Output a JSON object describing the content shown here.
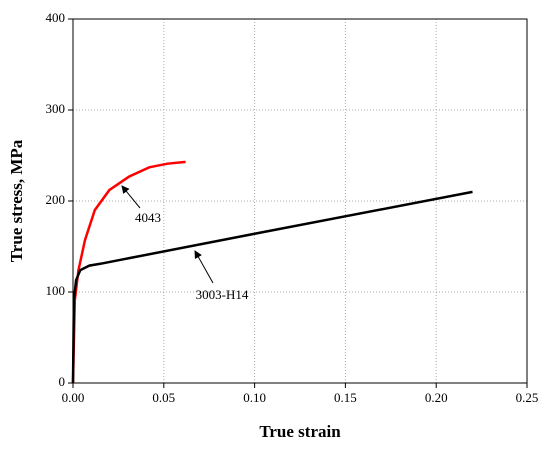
{
  "chart_data": {
    "type": "line",
    "xlabel": "True strain",
    "ylabel": "True stress, MPa",
    "xlim": [
      0,
      0.25
    ],
    "ylim": [
      0,
      400
    ],
    "xticks": [
      {
        "value": 0,
        "label": "0.00"
      },
      {
        "value": 0.05,
        "label": "0.05"
      },
      {
        "value": 0.1,
        "label": "0.10"
      },
      {
        "value": 0.15,
        "label": "0.15"
      },
      {
        "value": 0.2,
        "label": "0.20"
      },
      {
        "value": 0.25,
        "label": "0.25"
      }
    ],
    "yticks": [
      0,
      100,
      200,
      300,
      400
    ],
    "grid": true,
    "series": [
      {
        "name": "4043",
        "color": "#ff0000",
        "x": [
          0,
          0.001,
          0.003,
          0.0066,
          0.012,
          0.02,
          0.031,
          0.042,
          0.052,
          0.062
        ],
        "values": [
          0,
          91,
          124,
          157,
          190,
          212,
          227,
          237,
          241,
          243
        ]
      },
      {
        "name": "3003-H14",
        "color": "#000000",
        "x": [
          0,
          0.0005,
          0.0017,
          0.004,
          0.009,
          0.015,
          0.1,
          0.22
        ],
        "values": [
          0,
          91,
          113,
          124,
          129,
          131,
          164,
          210
        ]
      }
    ]
  }
}
